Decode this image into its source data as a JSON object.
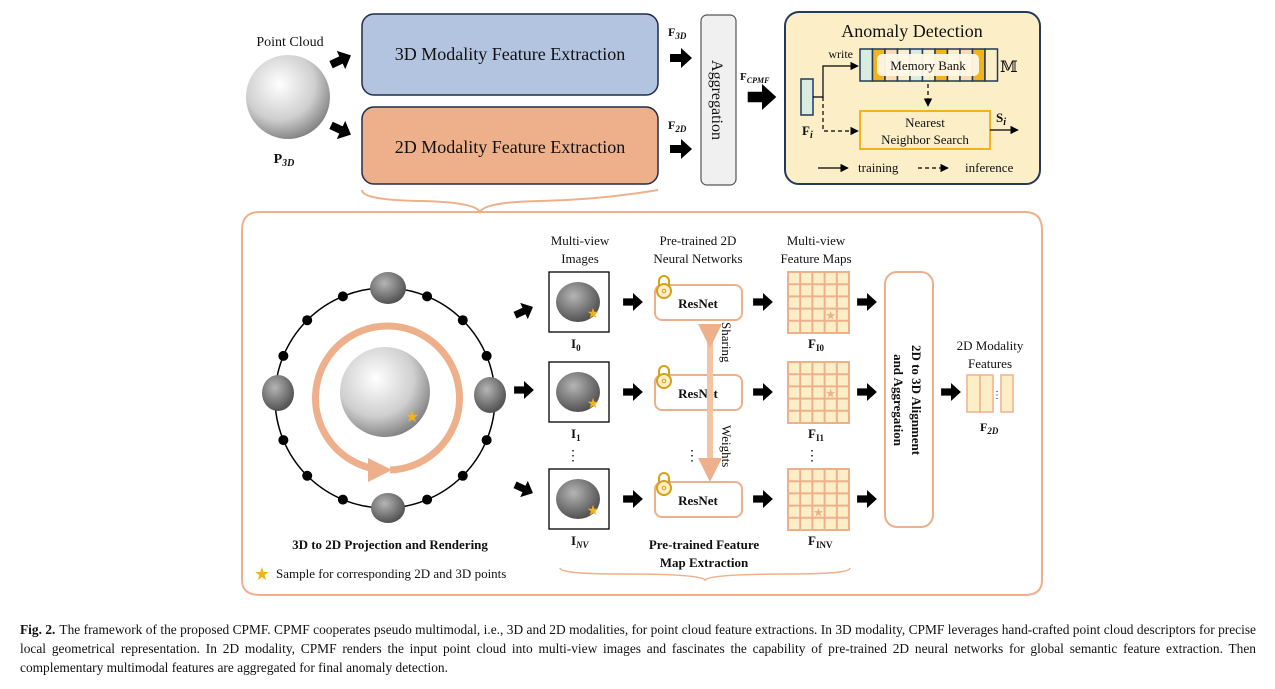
{
  "colors": {
    "blue_box": "#b3c4e0",
    "orange_box": "#eeb08a",
    "orange_line": "#eeb08a",
    "yellow_panel": "#fcefc8",
    "navy": "#23395d",
    "gold": "#f3b31b",
    "lock": "#d4a017"
  },
  "top": {
    "point_cloud_label": "Point Cloud",
    "p3d": {
      "main": "P",
      "sub": "3D"
    },
    "box_3d": "3D Modality Feature Extraction",
    "box_2d": "2D Modality Feature Extraction",
    "f3d": {
      "main": "F",
      "sub": "3D"
    },
    "f2d": {
      "main": "F",
      "sub": "2D"
    },
    "aggregation": "Aggregation",
    "fcpmf": {
      "main": "F",
      "sub": "CPMF"
    }
  },
  "anomaly": {
    "title": "Anomaly Detection",
    "write": "write",
    "memory_bank": "Memory Bank",
    "memory_symbol": "𝕄",
    "fi": {
      "main": "F",
      "sub": "i"
    },
    "nn_line1": "Nearest",
    "nn_line2": "Neighbor Search",
    "si": {
      "main": "S",
      "sub": "i"
    },
    "legend_training": "training",
    "legend_inference": "inference"
  },
  "bottom": {
    "projection_label": "3D to 2D Projection and Rendering",
    "star_legend": "Sample for corresponding 2D and 3D points",
    "col_images": [
      "Multi-view",
      "Images"
    ],
    "col_networks": [
      "Pre-trained 2D",
      "Neural Networks"
    ],
    "col_maps": [
      "Multi-view",
      "Feature Maps"
    ],
    "image_labels": [
      {
        "main": "I",
        "sub": "0"
      },
      {
        "main": "I",
        "sub": "1"
      },
      {
        "main": "I",
        "sub": "NV"
      }
    ],
    "map_labels": [
      {
        "main": "F",
        "sub": "I0"
      },
      {
        "main": "F",
        "sub": "I1"
      },
      {
        "main": "F",
        "sub": "INV"
      }
    ],
    "network": "ResNet",
    "sharing": "Sharing",
    "weights": "Weights",
    "ellipsis": "⋮",
    "align_line1": "2D to 3D Alignment",
    "align_line2": "and Aggregation",
    "features_line1": "2D Modality",
    "features_line2": "Features",
    "f2d": {
      "main": "F",
      "sub": "2D"
    },
    "extraction_line1": "Pre-trained Feature",
    "extraction_line2": "Map Extraction"
  },
  "caption": {
    "label": "Fig. 2.",
    "text": "The framework of the proposed CPMF. CPMF cooperates pseudo multimodal, i.e., 3D and 2D modalities, for point cloud feature extractions. In 3D modality, CPMF leverages hand-crafted point cloud descriptors for precise local geometrical representation. In 2D modality, CPMF renders the input point cloud into multi-view images and fascinates the capability of pre-trained 2D neural networks for global semantic feature extraction. Then complementary multimodal features are aggregated for final anomaly detection."
  }
}
